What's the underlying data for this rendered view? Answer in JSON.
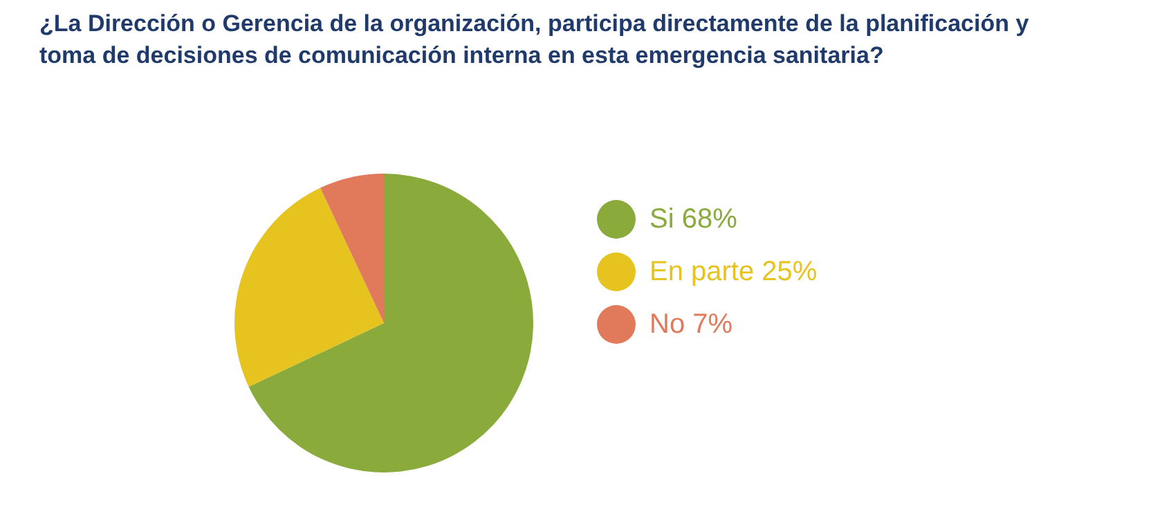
{
  "chart_data": {
    "type": "pie",
    "title": "¿La Dirección o Gerencia de la organización, participa directamente de la planificación y toma de decisiones de comunicación interna en esta emergencia sanitaria?",
    "categories": [
      "Si",
      "En parte",
      "No"
    ],
    "values": [
      68,
      25,
      7
    ],
    "value_labels": [
      "68%",
      "25%",
      "7%"
    ],
    "colors": [
      "#8aab3c",
      "#e6c31f",
      "#e07a5a"
    ],
    "legend": "right"
  }
}
